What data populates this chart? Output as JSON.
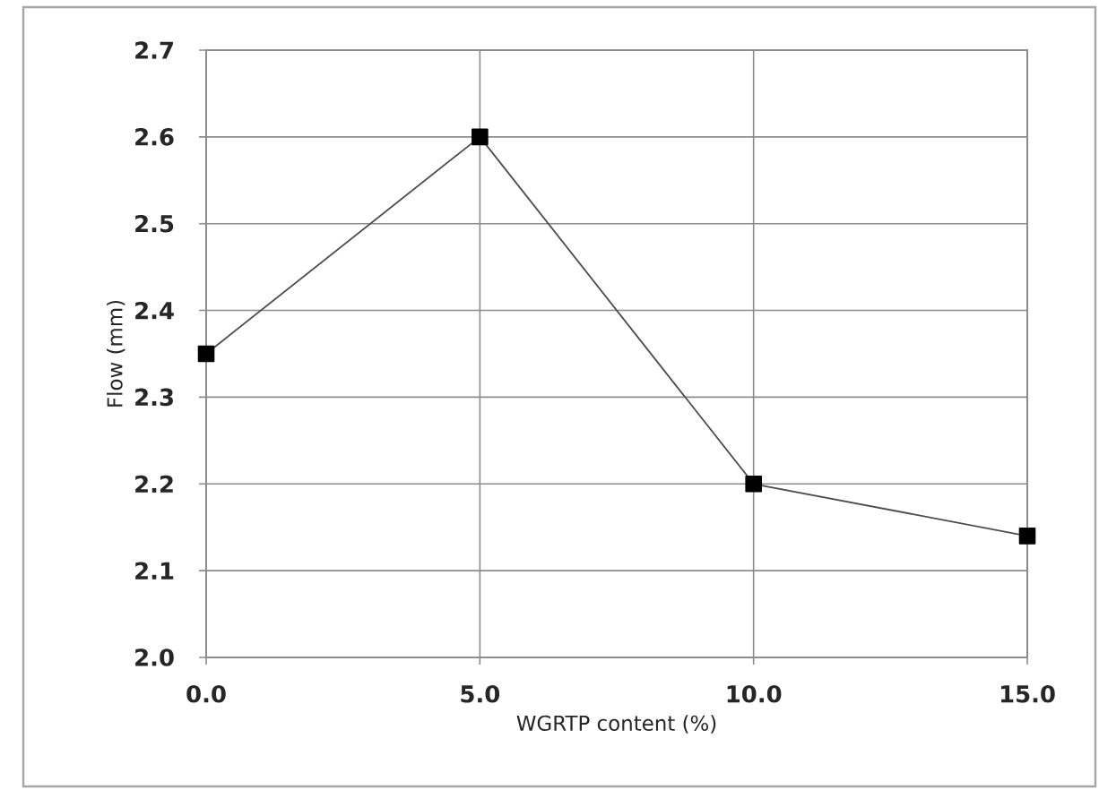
{
  "chart_data": {
    "type": "line",
    "xlabel": "WGRTP content (%)",
    "ylabel": "Flow (mm)",
    "x": [
      0,
      5,
      10,
      15
    ],
    "series": [
      {
        "color": "#000000",
        "values": [
          2.35,
          2.6,
          2.2,
          2.14
        ]
      }
    ],
    "xlim": [
      0,
      15
    ],
    "xticks": [
      {
        "value": 0,
        "label": "0.0"
      },
      {
        "value": 5,
        "label": "5.0"
      },
      {
        "value": 10,
        "label": "10.0"
      },
      {
        "value": 15,
        "label": "15.0"
      }
    ],
    "ylim": [
      2.0,
      2.7
    ],
    "yticks": [
      {
        "value": 2.0,
        "label": "2.0"
      },
      {
        "value": 2.1,
        "label": "2.1"
      },
      {
        "value": 2.2,
        "label": "2.2"
      },
      {
        "value": 2.3,
        "label": "2.3"
      },
      {
        "value": 2.4,
        "label": "2.4"
      },
      {
        "value": 2.5,
        "label": "2.5"
      },
      {
        "value": 2.6,
        "label": "2.6"
      },
      {
        "value": 2.7,
        "label": "2.7"
      }
    ],
    "grid": true,
    "marker": "square",
    "line_style": "solid"
  }
}
